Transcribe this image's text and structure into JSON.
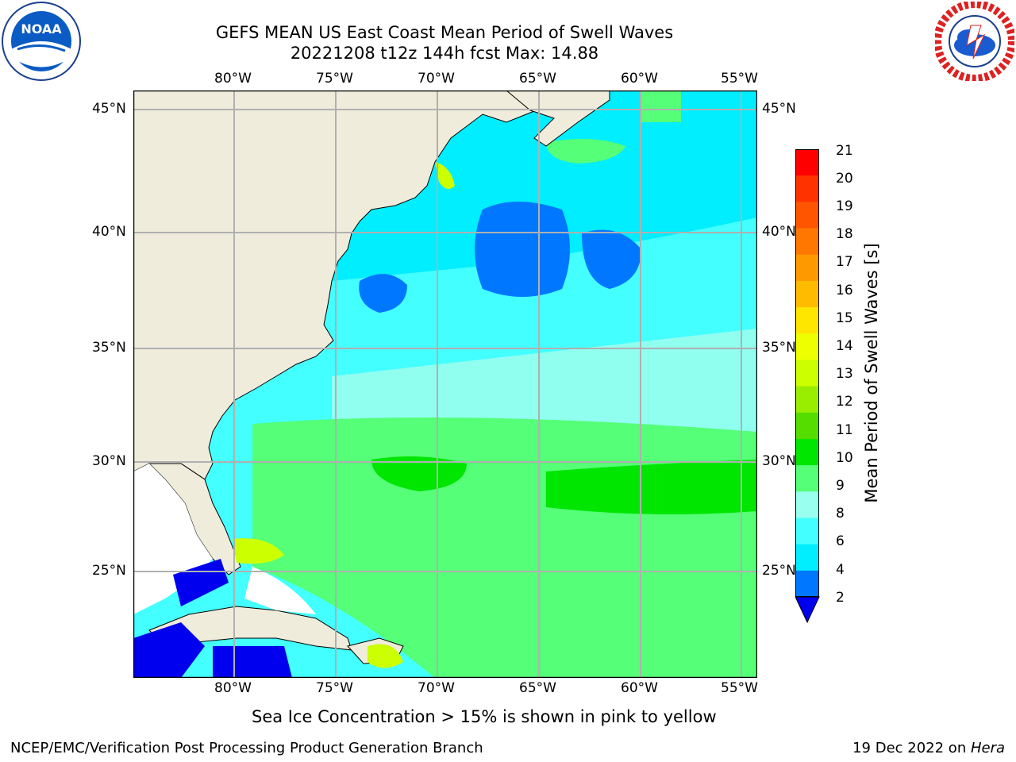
{
  "header": {
    "title_line1": "GEFS MEAN US East Coast Mean Period of Swell Waves",
    "title_line2": "20221208 t12z 144h fcst   Max: 14.88"
  },
  "logos": {
    "left": {
      "name": "noaa-logo",
      "text": "NOAA"
    },
    "right": {
      "name": "nws-logo"
    }
  },
  "map": {
    "lon_labels": [
      "80°W",
      "75°W",
      "70°W",
      "65°W",
      "60°W",
      "55°W"
    ],
    "lat_labels": [
      "45°N",
      "40°N",
      "35°N",
      "30°N",
      "25°N"
    ],
    "colors": {
      "land": "#efecdc",
      "nodata": "#ffffff",
      "grid": "#b0b0b0"
    }
  },
  "colorbar": {
    "label": "Mean Period of Swell Waves [s]",
    "ticks": [
      "21",
      "20",
      "19",
      "18",
      "17",
      "16",
      "15",
      "14",
      "13",
      "12",
      "11",
      "10",
      "9",
      "8",
      "6",
      "4",
      "2"
    ],
    "colors": [
      "#ff0000",
      "#ff3300",
      "#ff5500",
      "#ff7700",
      "#ff9900",
      "#ffbb00",
      "#ffe600",
      "#eeff00",
      "#ccff00",
      "#99ee00",
      "#55dd00",
      "#00e600",
      "#55ff77",
      "#99ffee",
      "#44ffff",
      "#00eeff",
      "#0077ff"
    ],
    "extend_color": "#0000ee"
  },
  "bottom_note": "Sea Ice Concentration > 15% is shown in pink to yellow",
  "footer": {
    "left": "NCEP/EMC/Verification Post Processing Product Generation Branch",
    "right_date": "19 Dec 2022 on ",
    "right_machine": "Hera"
  }
}
